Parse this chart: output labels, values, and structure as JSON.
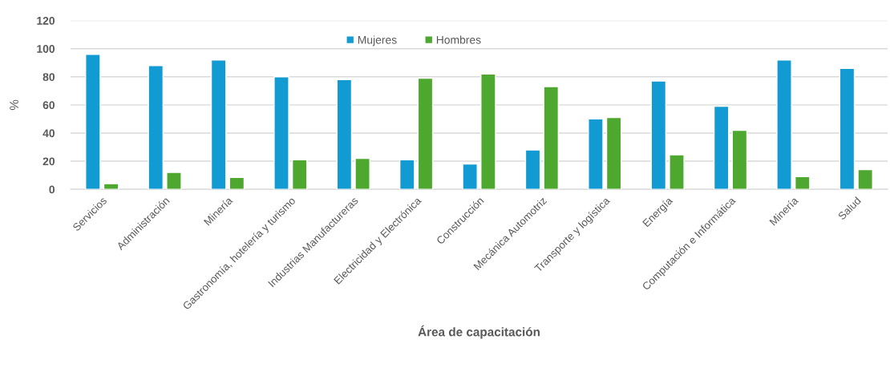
{
  "chart_data": {
    "type": "bar",
    "categories": [
      "Servicios",
      "Administración",
      "Minería",
      "Gastronomía, hotelería y turismo",
      "Industrias Manufactureras",
      "Electricidad y Electrónica",
      "Construcción",
      "Mecánica Automotriz",
      "Transporte y logística",
      "Energía",
      "Computación e Informática",
      "Minería",
      "Salud"
    ],
    "series": [
      {
        "name": "Mujeres",
        "color": "#129bd3",
        "values": [
          96,
          88,
          92,
          80,
          78,
          21,
          18,
          28,
          50,
          77,
          59,
          92,
          86
        ]
      },
      {
        "name": "Hombres",
        "color": "#4ea72e",
        "values": [
          4,
          12,
          8.5,
          21,
          22,
          79,
          82,
          73,
          51,
          24.5,
          42,
          9,
          14
        ]
      }
    ],
    "xlabel": "Área de capacitación",
    "ylabel": "%",
    "ylim": [
      0,
      120
    ],
    "yticks": [
      0,
      20,
      40,
      60,
      80,
      100,
      120
    ],
    "grid": "y",
    "legend": "top"
  }
}
